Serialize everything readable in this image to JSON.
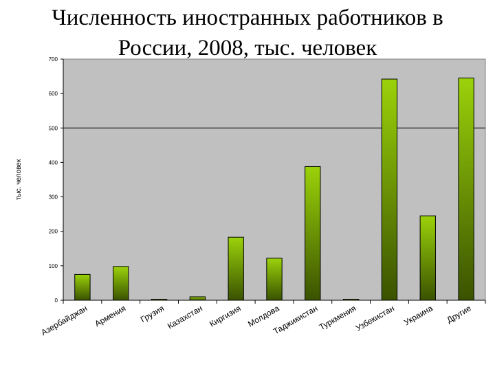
{
  "title_line1": "Численность иностранных работников в",
  "title_line2": "России, 2008, тыс. человек",
  "colors": {
    "plot_background": "#c0c0c0",
    "bar_top": "#9bd20a",
    "bar_bottom": "#3a5200",
    "bar_border": "#000000",
    "reference_line": "#000000"
  },
  "chart_data": {
    "type": "bar",
    "title": "Численность иностранных работников в России, 2008, тыс. человек",
    "ylabel": "тыс. человек",
    "xlabel": "",
    "ylim": [
      0,
      700
    ],
    "yticks": [
      0,
      100,
      200,
      300,
      400,
      500,
      600,
      700
    ],
    "reference_line": 500,
    "grid": false,
    "legend": "none",
    "categories": [
      "Азербайджан",
      "Армения",
      "Грузия",
      "Казахстан",
      "Киргизия",
      "Молдова",
      "Таджикистан",
      "Туркмения",
      "Узбекистан",
      "Украина",
      "Другие"
    ],
    "values": [
      75,
      98,
      3,
      10,
      183,
      122,
      388,
      3,
      642,
      245,
      645
    ]
  }
}
